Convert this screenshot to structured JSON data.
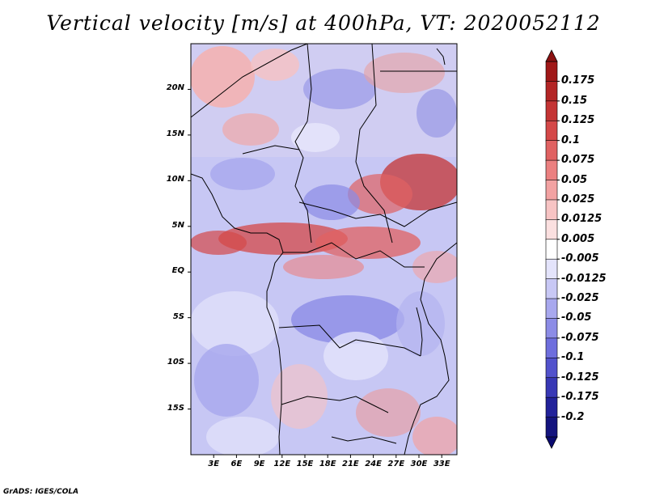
{
  "title": "Vertical velocity [m/s] at 400hPa, VT: 2020052112",
  "credit": "GrADS: IGES/COLA",
  "map": {
    "lon_range": [
      0,
      35
    ],
    "lat_range": [
      -20,
      25
    ],
    "lat_labels": [
      "20N",
      "15N",
      "10N",
      "5N",
      "EQ",
      "5S",
      "10S",
      "15S"
    ],
    "lat_values": [
      20,
      15,
      10,
      5,
      0,
      -5,
      -10,
      -15
    ],
    "lon_labels": [
      "3E",
      "6E",
      "9E",
      "12E",
      "15E",
      "18E",
      "21E",
      "24E",
      "27E",
      "30E",
      "33E"
    ],
    "lon_values": [
      3,
      6,
      9,
      12,
      15,
      18,
      21,
      24,
      27,
      30,
      33
    ]
  },
  "colorbar": {
    "levels": [
      "0.175",
      "0.15",
      "0.125",
      "0.1",
      "0.075",
      "0.05",
      "0.025",
      "0.0125",
      "0.005",
      "-0.005",
      "-0.0125",
      "-0.025",
      "-0.05",
      "-0.075",
      "-0.1",
      "-0.125",
      "-0.175",
      "-0.2"
    ],
    "colors": [
      "#a01818",
      "#b32525",
      "#c43434",
      "#d44848",
      "#e06262",
      "#eb8080",
      "#f2a2a2",
      "#f7c4c4",
      "#fbe0e0",
      "#ffffff",
      "#e4e4fb",
      "#c8c8f5",
      "#a8a8ee",
      "#8c8ce6",
      "#6e6edd",
      "#5252cc",
      "#3838b5",
      "#22229a",
      "#14147e"
    ]
  }
}
